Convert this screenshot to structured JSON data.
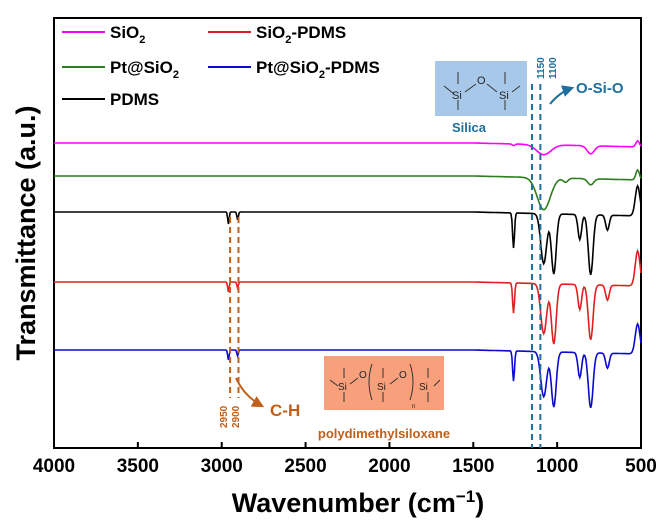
{
  "chart_data": {
    "type": "line",
    "xlabel": "Wavenumber (cm",
    "xlabel_sup": "−1",
    "xlabel_close": ")",
    "ylabel": "Transmittance (a.u.)",
    "xlim": [
      4000,
      500
    ],
    "x_reversed": true,
    "x_ticks": [
      "4000",
      "3500",
      "3000",
      "2500",
      "2000",
      "1500",
      "1000",
      "500"
    ],
    "grid": false,
    "legend_position": "top-left",
    "series": [
      {
        "name": "SiO",
        "name_sub": "2",
        "color": "#ff00ff",
        "baseline": 143,
        "features": [
          [
            1260,
            1.5,
            12
          ],
          [
            1080,
            10,
            60
          ],
          [
            800,
            8,
            30
          ],
          [
            520,
            -6,
            15
          ]
        ]
      },
      {
        "name": "Pt@SiO",
        "name_sub": "2",
        "color": "#2e7d1e",
        "baseline": 176,
        "features": [
          [
            1080,
            32,
            55
          ],
          [
            950,
            4,
            20
          ],
          [
            800,
            6,
            25
          ],
          [
            520,
            -10,
            15
          ]
        ]
      },
      {
        "name": "SiO",
        "name_sub": "2",
        "name_suffix": "-PDMS",
        "color": "#e02020",
        "baseline": 282,
        "features": [
          [
            2960,
            10,
            6
          ],
          [
            2905,
            6,
            6
          ],
          [
            1260,
            30,
            8
          ],
          [
            1080,
            50,
            25
          ],
          [
            1020,
            60,
            20
          ],
          [
            865,
            25,
            15
          ],
          [
            800,
            55,
            20
          ],
          [
            700,
            15,
            15
          ],
          [
            520,
            -35,
            20
          ]
        ]
      },
      {
        "name": "Pt@SiO",
        "name_sub": "2",
        "name_suffix": "-PDMS",
        "color": "#0a0ad0",
        "baseline": 350,
        "features": [
          [
            2960,
            10,
            6
          ],
          [
            2905,
            6,
            6
          ],
          [
            1260,
            30,
            8
          ],
          [
            1080,
            45,
            25
          ],
          [
            1020,
            55,
            20
          ],
          [
            865,
            25,
            15
          ],
          [
            800,
            55,
            20
          ],
          [
            700,
            15,
            15
          ],
          [
            520,
            -30,
            20
          ]
        ]
      },
      {
        "name": "PDMS",
        "color": "#000000",
        "baseline": 212,
        "features": [
          [
            2960,
            12,
            6
          ],
          [
            2905,
            8,
            6
          ],
          [
            1260,
            35,
            8
          ],
          [
            1080,
            50,
            25
          ],
          [
            1020,
            60,
            20
          ],
          [
            865,
            25,
            15
          ],
          [
            800,
            60,
            20
          ],
          [
            700,
            15,
            15
          ],
          [
            520,
            -30,
            20
          ]
        ]
      }
    ],
    "annotations": {
      "ch_label": "C-H",
      "ch_lines": [
        "2950",
        "2900"
      ],
      "sio_label": "O-Si-O",
      "sio_lines": [
        "1150",
        "1100"
      ],
      "silica_label": "Silica",
      "pdms_label": "polydimethylsiloxane",
      "colors": {
        "ch": "#c0601a",
        "sio": "#1f6e9c",
        "silica_box": "#a8c8ea",
        "pdms_box": "#f8a07c"
      }
    }
  }
}
